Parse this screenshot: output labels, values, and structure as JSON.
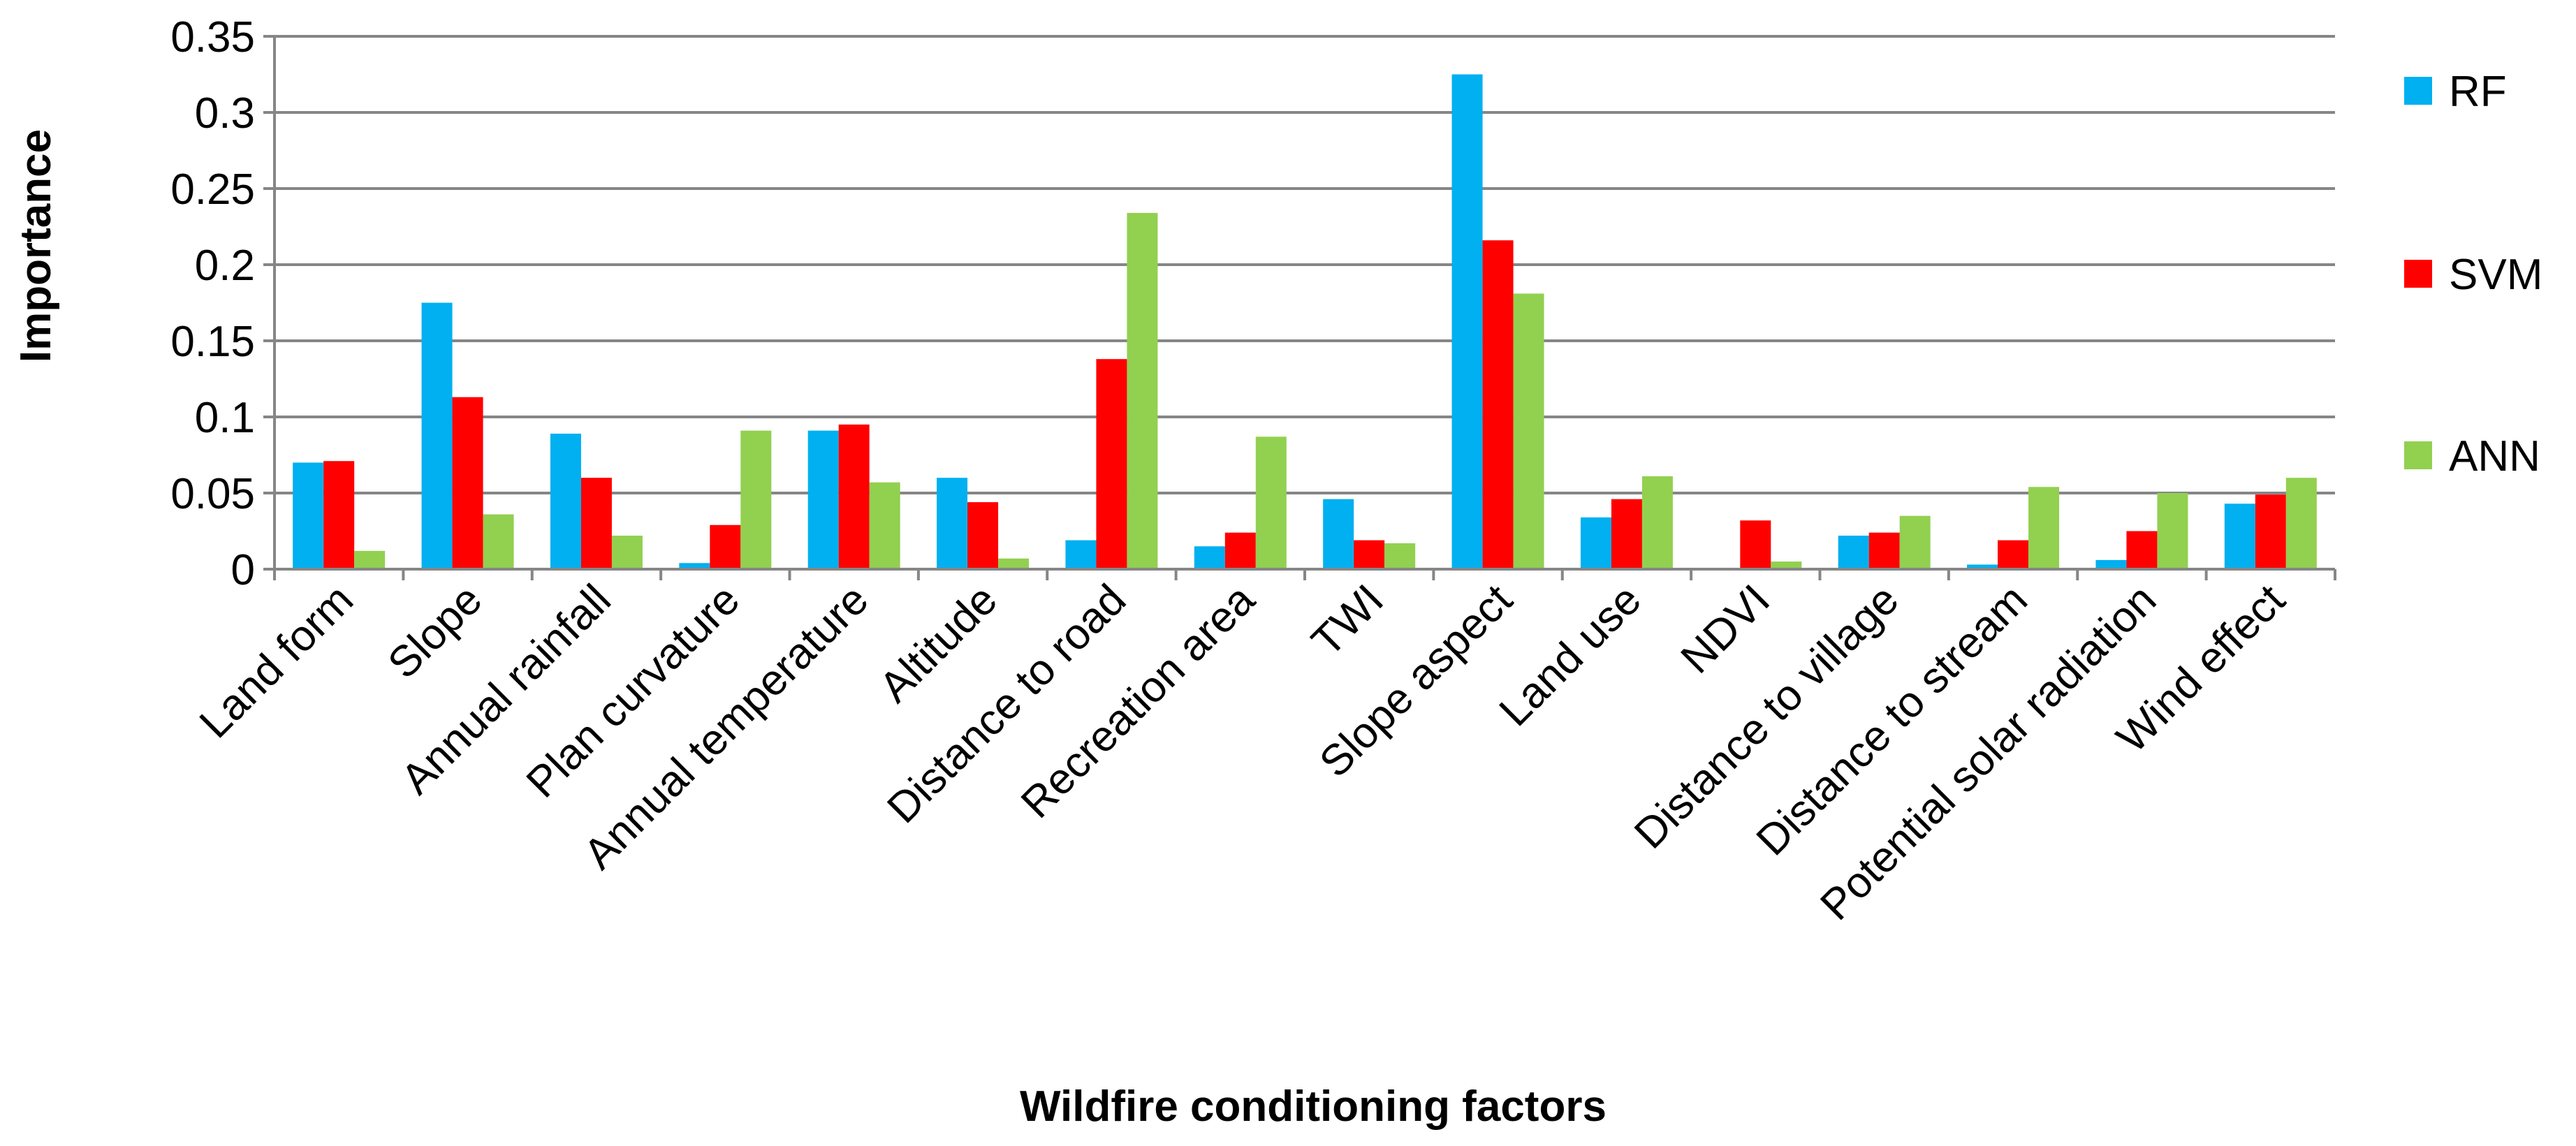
{
  "chart_data": {
    "type": "bar",
    "xlabel": "Wildfire conditioning factors",
    "ylabel": "Importance",
    "ylim": [
      0,
      0.35
    ],
    "yticks": [
      "0",
      "0.05",
      "0.1",
      "0.15",
      "0.2",
      "0.25",
      "0.3",
      "0.35"
    ],
    "grid": true,
    "legend_position": "right",
    "categories": [
      "Land form",
      "Slope",
      "Annual rainfall",
      "Plan curvature",
      "Annual temperature",
      "Altitude",
      "Distance to road",
      "Recreation area",
      "TWI",
      "Slope aspect",
      "Land use",
      "NDVI",
      "Distance to village",
      "Distance to stream",
      "Potential solar radiation",
      "Wind effect"
    ],
    "series": [
      {
        "name": "RF",
        "color": "#00B0F0",
        "values": [
          0.07,
          0.175,
          0.089,
          0.004,
          0.091,
          0.06,
          0.019,
          0.015,
          0.046,
          0.325,
          0.034,
          0,
          0.022,
          0.003,
          0.006,
          0.043
        ]
      },
      {
        "name": "SVM",
        "color": "#FF0000",
        "values": [
          0.071,
          0.113,
          0.06,
          0.029,
          0.095,
          0.044,
          0.138,
          0.024,
          0.019,
          0.216,
          0.046,
          0.032,
          0.024,
          0.019,
          0.025,
          0.049
        ]
      },
      {
        "name": "ANN",
        "color": "#92D050",
        "values": [
          0.012,
          0.036,
          0.022,
          0.091,
          0.057,
          0.007,
          0.234,
          0.087,
          0.017,
          0.181,
          0.061,
          0.005,
          0.035,
          0.054,
          0.05,
          0.06
        ]
      }
    ]
  }
}
